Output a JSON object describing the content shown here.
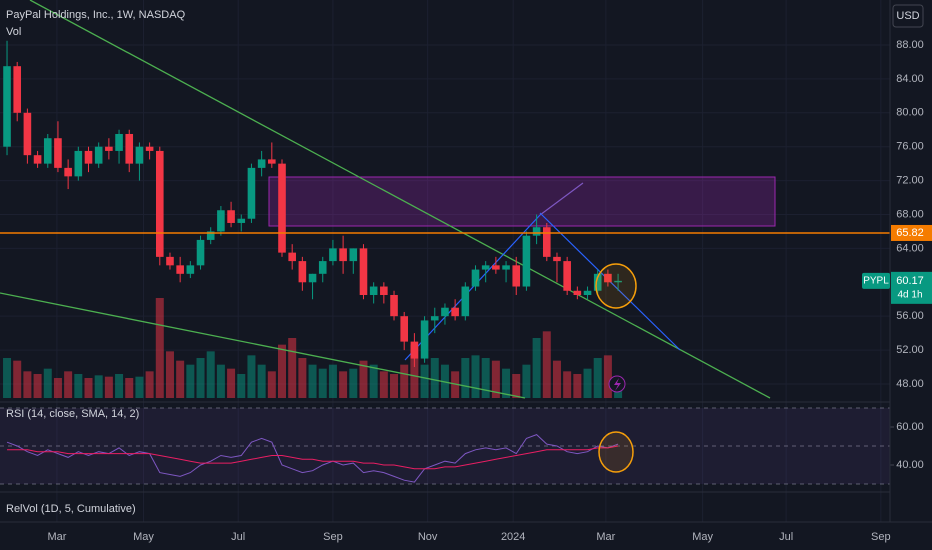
{
  "chart_data": [
    {
      "type": "candlestick",
      "title": "PayPal Holdings, Inc., 1W, NASDAQ",
      "volume_label": "Vol",
      "currency": "USD",
      "up_color": "#089981",
      "down_color": "#f23645",
      "open": [
        76,
        85.5,
        80,
        75,
        74,
        77,
        73.5,
        72.5,
        75.5,
        74,
        76,
        75.5,
        77.5,
        74,
        76,
        75.5,
        63,
        62,
        61,
        62,
        65,
        66,
        68.5,
        67,
        67.5,
        73.5,
        74.5,
        74,
        63.5,
        62.5,
        60,
        61,
        62.5,
        64,
        62.5,
        64,
        58.5,
        59.5,
        58.5,
        56,
        53,
        51,
        55.5,
        56,
        57,
        56,
        59.5,
        61.5,
        62,
        61.5,
        62,
        59.5,
        65.5,
        66.5,
        63,
        62.5,
        59,
        58.5,
        59,
        61,
        60
      ],
      "high": [
        88.5,
        86,
        80.5,
        75.5,
        77.5,
        79,
        74.5,
        76,
        76,
        76.5,
        77,
        78,
        78,
        76.5,
        76.5,
        76,
        63.5,
        63,
        62.5,
        65.5,
        66.5,
        69,
        69.5,
        68,
        74,
        75.5,
        76.5,
        74.5,
        64.5,
        63,
        61,
        63,
        65,
        65.5,
        64,
        64.5,
        60,
        60,
        59,
        56.5,
        54,
        56,
        57,
        57.5,
        58,
        60,
        62,
        62.5,
        63,
        62.5,
        63,
        66,
        68,
        67,
        63.5,
        63,
        59.5,
        59.5,
        61.5,
        61.5,
        61
      ],
      "low": [
        75,
        79,
        74,
        73.5,
        73.5,
        73,
        71,
        72,
        73,
        73.5,
        74.5,
        74,
        73,
        72,
        74.5,
        62,
        61.5,
        60,
        60.5,
        61.5,
        64.5,
        65.5,
        66.5,
        66,
        67,
        72.5,
        73.5,
        63,
        61.5,
        59,
        58,
        60,
        62,
        61,
        61,
        58,
        57.5,
        57.5,
        55.5,
        52,
        50,
        50.5,
        54,
        55,
        55.5,
        55.5,
        59,
        60,
        61,
        60,
        58.5,
        59,
        64.5,
        62.5,
        60,
        58.5,
        58,
        58,
        58.5,
        59.5,
        59
      ],
      "close": [
        85.5,
        80,
        75,
        74,
        77,
        73.5,
        72.5,
        75.5,
        74,
        76,
        75.5,
        77.5,
        74,
        76,
        75.5,
        63,
        62,
        61,
        62,
        65,
        66,
        68.5,
        67,
        67.5,
        73.5,
        74.5,
        74,
        63.5,
        62.5,
        60,
        61,
        62.5,
        64,
        62.5,
        64,
        58.5,
        59.5,
        58.5,
        56,
        53,
        51,
        55.5,
        56,
        57,
        56,
        59.5,
        61.5,
        62,
        61.5,
        62,
        59.5,
        65.5,
        66.5,
        63,
        62.5,
        59,
        58.5,
        59,
        61,
        60,
        60.17
      ],
      "volume": [
        30,
        28,
        20,
        18,
        22,
        15,
        20,
        18,
        15,
        17,
        16,
        18,
        15,
        16,
        20,
        75,
        35,
        28,
        25,
        30,
        35,
        25,
        22,
        18,
        32,
        25,
        20,
        40,
        45,
        30,
        25,
        22,
        25,
        20,
        22,
        28,
        25,
        20,
        18,
        25,
        40,
        25,
        30,
        25,
        20,
        30,
        32,
        30,
        28,
        22,
        18,
        25,
        45,
        50,
        28,
        20,
        18,
        22,
        30,
        32,
        12
      ],
      "xlim": [
        -0.69,
        86.7
      ],
      "xticks": [
        {
          "value": 4.9,
          "label": "Mar"
        },
        {
          "value": 13.4,
          "label": "May"
        },
        {
          "value": 22.7,
          "label": "Jul"
        },
        {
          "value": 32.0,
          "label": "Sep"
        },
        {
          "value": 41.3,
          "label": "Nov"
        },
        {
          "value": 49.7,
          "label": "2024"
        },
        {
          "value": 58.8,
          "label": "Mar"
        },
        {
          "value": 68.3,
          "label": "May"
        },
        {
          "value": 76.5,
          "label": "Jul"
        },
        {
          "value": 85.8,
          "label": "Sep"
        }
      ],
      "ylim": [
        46.11,
        93.31
      ],
      "yticks": [
        {
          "value": 88,
          "label": "88.00"
        },
        {
          "value": 84,
          "label": "84.00"
        },
        {
          "value": 80,
          "label": "80.00"
        },
        {
          "value": 76,
          "label": "76.00"
        },
        {
          "value": 72,
          "label": "72.00"
        },
        {
          "value": 68,
          "label": "68.00"
        },
        {
          "value": 64,
          "label": "64.00"
        },
        {
          "value": 56,
          "label": "56.00"
        },
        {
          "value": 52,
          "label": "52.00"
        },
        {
          "value": 48,
          "label": "48.00"
        }
      ],
      "hline": {
        "value": 65.82,
        "color": "#f57c00"
      },
      "last": {
        "symbol": "PYPL",
        "value": 60.17,
        "countdown": "4d 1h"
      }
    },
    {
      "type": "line",
      "title": "RSI (14, close, SMA, 14, 2)",
      "series": [
        {
          "color": "#7e57c2",
          "values": [
            52,
            50,
            47,
            45,
            48,
            46,
            44,
            47,
            45,
            47,
            46,
            49,
            45,
            47,
            46,
            36,
            35,
            34,
            36,
            40,
            42,
            45,
            44,
            45,
            52,
            54,
            52,
            40,
            38,
            36,
            37,
            40,
            42,
            40,
            41,
            36,
            37,
            36,
            34,
            32,
            31,
            38,
            40,
            42,
            41,
            46,
            48,
            49,
            48,
            49,
            46,
            54,
            56,
            51,
            50,
            47,
            46,
            47,
            50,
            49,
            51
          ]
        },
        {
          "color": "#e91e63",
          "values": [
            48,
            48,
            48,
            47,
            47,
            47,
            46,
            46,
            46,
            46,
            46,
            46,
            46,
            46,
            46,
            45,
            44,
            43,
            42,
            41,
            41,
            41,
            41,
            42,
            43,
            44,
            45,
            45,
            44,
            43,
            43,
            42,
            42,
            42,
            42,
            41,
            41,
            40,
            40,
            39,
            38,
            38,
            38,
            39,
            39,
            40,
            41,
            42,
            43,
            44,
            45,
            46,
            47,
            48,
            48,
            48,
            48,
            48,
            49,
            49,
            50
          ]
        }
      ],
      "ylim": [
        26.84,
        71.58
      ],
      "yticks": [
        {
          "value": 60,
          "label": "60.00"
        },
        {
          "value": 40,
          "label": "40.00"
        }
      ],
      "levels": [
        70,
        50,
        30
      ]
    }
  ],
  "relvol": {
    "title": "RelVol (1D, 5, Cumulative)"
  }
}
